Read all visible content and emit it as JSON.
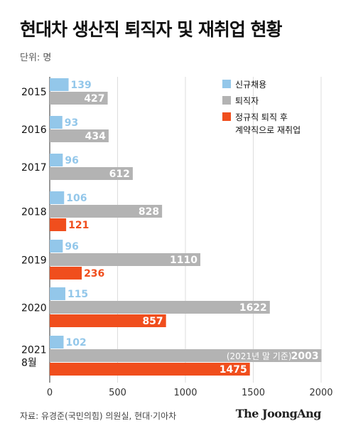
{
  "title": "현대차 생산직 퇴직자 및 재취업 현황",
  "unit": "단위: 명",
  "source": "자료: 유경준(국민의힘) 의원실, 현대·기아차",
  "brand": "The JoongAng",
  "colors": {
    "new_hire": "#93c7ea",
    "retiree": "#b3b3b3",
    "rehire": "#f04e1d"
  },
  "chart_data": {
    "type": "bar",
    "orientation": "horizontal",
    "categories": [
      "2015",
      "2016",
      "2017",
      "2018",
      "2019",
      "2020",
      "2021\n8월"
    ],
    "series": [
      {
        "name": "신규채용",
        "values": [
          139,
          93,
          96,
          106,
          96,
          115,
          102
        ]
      },
      {
        "name": "퇴직자",
        "values": [
          427,
          434,
          612,
          828,
          1110,
          1622,
          2003
        ]
      },
      {
        "name": "정규직 퇴직 후\n계약직으로 재취업",
        "values": [
          null,
          null,
          null,
          121,
          236,
          857,
          1475
        ]
      }
    ],
    "annotations": [
      {
        "category": "2021\n8월",
        "series": "퇴직자",
        "text": "(2021년 말 기준)"
      }
    ],
    "xlim": [
      0,
      2000
    ],
    "xticks": [
      "0",
      "500",
      "1000",
      "1500",
      "2000"
    ],
    "grid": true,
    "legend": "top-right"
  }
}
